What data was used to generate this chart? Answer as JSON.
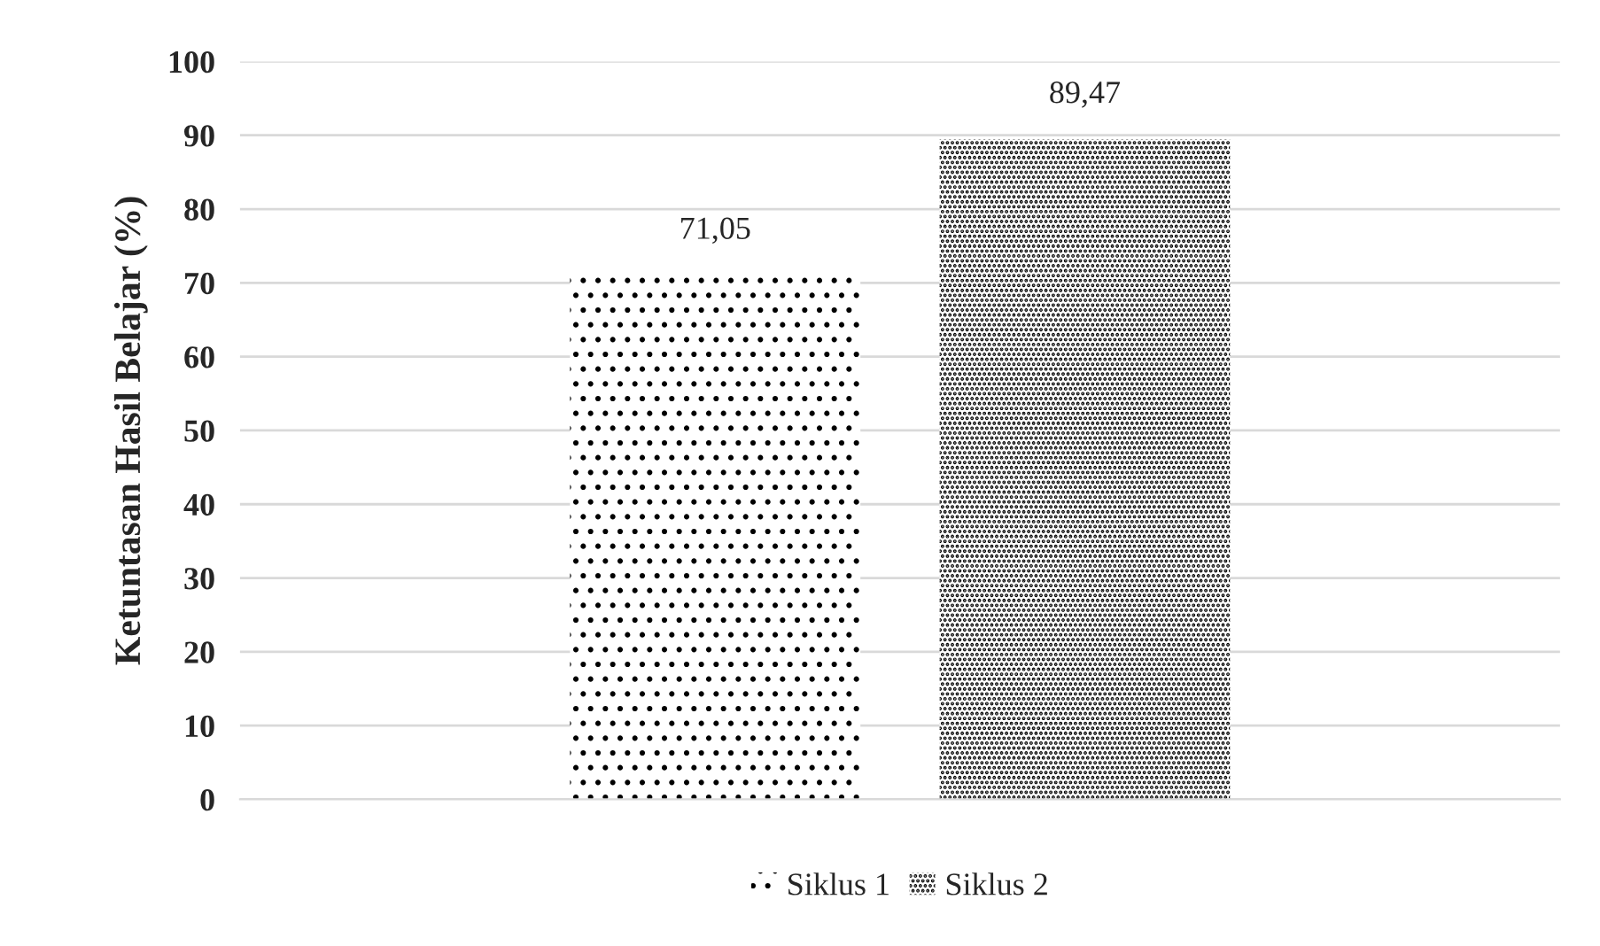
{
  "chart_data": {
    "type": "bar",
    "ylabel": "Ketuntasan Hasil Belajar (%)",
    "categories": [
      null
    ],
    "series": [
      {
        "name": "Siklus 1",
        "color": "#000000",
        "values": [
          71.05
        ],
        "value_labels": [
          "71,05"
        ]
      },
      {
        "name": "Siklus 2",
        "color": "#000000",
        "values": [
          89.47
        ],
        "value_labels": [
          "89,47"
        ]
      }
    ],
    "ylim": [
      0,
      100
    ],
    "yticks": [
      0,
      10,
      20,
      30,
      40,
      50,
      60,
      70,
      80,
      90,
      100
    ],
    "grid": "y",
    "legend": "bottom"
  }
}
